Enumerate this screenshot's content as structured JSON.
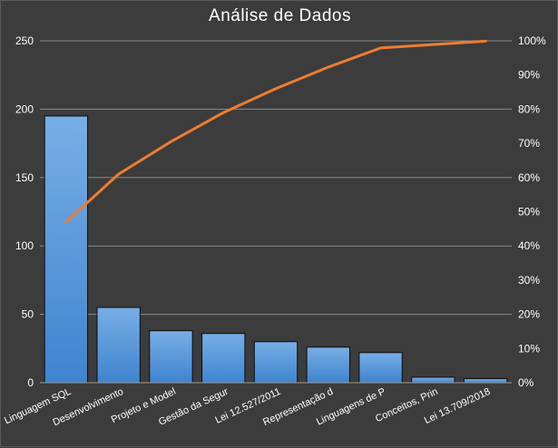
{
  "chart_data": {
    "type": "bar",
    "title": "Análise de Dados",
    "categories": [
      "Linguagem SQL",
      "Desenvolvimento",
      "Projeto e Model",
      "Gestão da Segur",
      "Lei 12.527/2011",
      "Representação d",
      "Linguagens de P",
      "Conceitos, Prin",
      "Lei 13.709/2018"
    ],
    "series": [
      {
        "type": "bar",
        "values": [
          195,
          55,
          38,
          36,
          30,
          26,
          22,
          4,
          3
        ],
        "color": "#4a8fd6",
        "axis": "left"
      },
      {
        "type": "line",
        "values": [
          47,
          61,
          70.5,
          79,
          86,
          92.3,
          97.9,
          98.9,
          99.9
        ],
        "color": "#ed7d31",
        "axis": "right"
      }
    ],
    "left_axis": {
      "min": 0,
      "max": 250,
      "ticks": [
        "0",
        "50",
        "100",
        "150",
        "200",
        "250"
      ]
    },
    "right_axis": {
      "min": 0,
      "max": 100,
      "ticks": [
        "0%",
        "10%",
        "20%",
        "30%",
        "40%",
        "50%",
        "60%",
        "70%",
        "80%",
        "90%",
        "100%"
      ]
    },
    "gridlines": true,
    "legend": "none"
  }
}
